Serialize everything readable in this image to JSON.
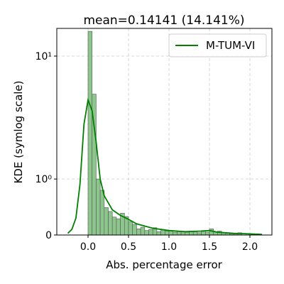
{
  "chart_data": {
    "type": "histogram",
    "title": "mean=0.14141 (14.141%)",
    "x_label": "Abs. percentage error",
    "y_label": "KDE (symlog scale)",
    "yscale": "symlog",
    "linthresh": 1,
    "linscale": 0.41,
    "grid": true,
    "legend": "upper right",
    "bar_color": "#8cc68c",
    "bar_edge": "#555555",
    "bins": [
      0,
      0.05,
      0.1,
      0.15,
      0.2,
      0.25,
      0.3,
      0.35,
      0.4,
      0.45,
      0.5,
      0.55,
      0.6,
      0.65,
      0.7,
      0.75,
      0.8,
      0.85,
      0.9,
      0.95,
      1.0,
      1.05,
      1.1,
      1.15,
      1.2,
      1.25,
      1.3,
      1.35,
      1.4,
      1.45,
      1.5,
      1.55,
      1.6,
      1.65,
      1.7,
      1.75,
      1.8,
      1.85,
      1.9
    ],
    "counts": [
      15.9,
      4.9,
      1.0,
      0.8,
      0.49,
      0.42,
      0.32,
      0.29,
      0.39,
      0.33,
      0.24,
      0.19,
      0.11,
      0.14,
      0.08,
      0.1,
      0.13,
      0.06,
      0.09,
      0.07,
      0.08,
      0.05,
      0.06,
      0.04,
      0.05,
      0.07,
      0.06,
      0.04,
      0.08,
      0.05,
      0.11,
      0.06,
      0.07,
      0.04,
      0.03,
      0.02,
      0.02,
      0.04,
      0.01
    ],
    "series": [
      {
        "name": "M-TUM-VI",
        "color": "#008000",
        "x": [
          -0.25,
          -0.2,
          -0.15,
          -0.1,
          -0.05,
          0.0,
          0.05,
          0.1,
          0.15,
          0.2,
          0.3,
          0.4,
          0.5,
          0.6,
          0.8,
          1.0,
          1.2,
          1.4,
          1.5,
          1.6,
          1.8,
          2.0,
          2.15
        ],
        "values": [
          0.03,
          0.1,
          0.3,
          0.9,
          2.8,
          4.4,
          3.6,
          2.0,
          1.0,
          0.7,
          0.45,
          0.35,
          0.28,
          0.2,
          0.12,
          0.08,
          0.06,
          0.07,
          0.08,
          0.05,
          0.03,
          0.02,
          0.01
        ]
      }
    ],
    "xlim": [
      -0.386,
      2.272
    ],
    "ylim": [
      0,
      16.8
    ],
    "xticks": [
      {
        "value": 0,
        "label": "0.0"
      },
      0.5,
      {
        "value": 1,
        "label": "1.0"
      },
      1.5,
      {
        "value": 2,
        "label": "2.0"
      }
    ],
    "yticks": [
      0,
      {
        "value": 1,
        "label": "10⁰"
      },
      {
        "value": 10,
        "label": "10¹"
      }
    ]
  }
}
